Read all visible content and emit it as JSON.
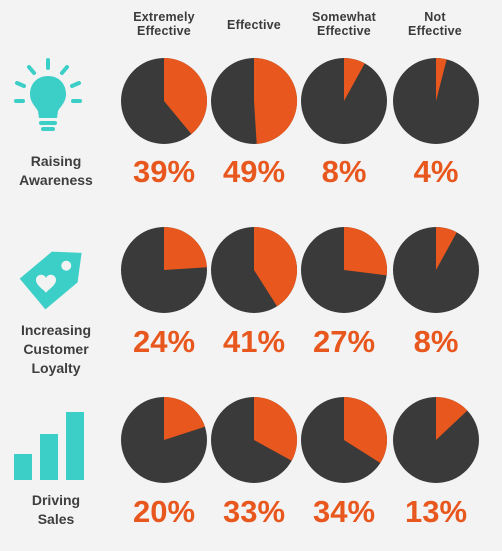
{
  "columns": [
    {
      "line1": "Extremely",
      "line2": "Effective"
    },
    {
      "line1": "Effective",
      "line2": ""
    },
    {
      "line1": "Somewhat",
      "line2": "Effective"
    },
    {
      "line1": "Not",
      "line2": "Effective"
    }
  ],
  "rows": [
    {
      "label_lines": [
        "Raising",
        "Awareness"
      ],
      "icon": "lightbulb-icon"
    },
    {
      "label_lines": [
        "Increasing",
        "Customer",
        "Loyalty"
      ],
      "icon": "price-tag-heart-icon"
    },
    {
      "label_lines": [
        "Driving",
        "Sales"
      ],
      "icon": "bar-chart-icon"
    }
  ],
  "colors": {
    "slice": "#e8571d",
    "pie_base": "#3a3a3a",
    "percent_text": "#e8571d",
    "icon": "#3ccfc7",
    "label_text": "#3e3e3e",
    "background": "#f3f3f3"
  },
  "chart_data": {
    "type": "pie",
    "categories": [
      "Extremely Effective",
      "Effective",
      "Somewhat Effective",
      "Not Effective"
    ],
    "series": [
      {
        "name": "Raising Awareness",
        "values": [
          39,
          49,
          8,
          4
        ],
        "labels": [
          "39%",
          "49%",
          "8%",
          "4%"
        ]
      },
      {
        "name": "Increasing Customer Loyalty",
        "values": [
          24,
          41,
          27,
          8
        ],
        "labels": [
          "24%",
          "41%",
          "27%",
          "8%"
        ]
      },
      {
        "name": "Driving Sales",
        "values": [
          20,
          33,
          34,
          13
        ],
        "labels": [
          "20%",
          "33%",
          "34%",
          "13%"
        ]
      }
    ],
    "unit": "%"
  }
}
